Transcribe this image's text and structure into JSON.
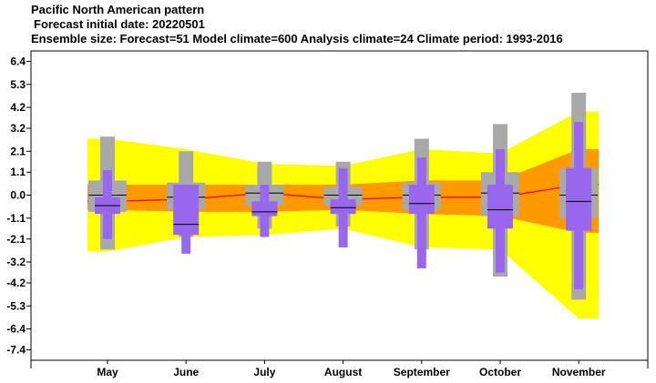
{
  "title": {
    "line1": "Pacific North American pattern",
    "line2": "Forecast initial date: 20220501",
    "line3": "Ensemble size: Forecast=51 Model climate=600 Analysis climate=24   Climate period: 1993-2016"
  },
  "chart_data": {
    "type": "box",
    "categories": [
      "May",
      "June",
      "July",
      "August",
      "September",
      "October",
      "November"
    ],
    "y_ticks": [
      "6.4",
      "5.3",
      "4.2",
      "3.2",
      "2.1",
      "1.1",
      "0.0",
      "-1.1",
      "-2.1",
      "-3.2",
      "-4.2",
      "-5.3",
      "-6.4",
      "-7.4"
    ],
    "ylim": [
      -7.9,
      6.9
    ],
    "grid": false,
    "colors": {
      "climate_envelope_outer": "#ffff00",
      "climate_envelope_inner": "#ff9900",
      "climate_median_line": "#ff0000",
      "model_climate_box": "#a9a9a9",
      "forecast_box": "#9966ee",
      "median_tick": "#000000"
    },
    "climate_envelope": {
      "outer_upper": [
        2.7,
        2.2,
        1.5,
        1.4,
        2.2,
        2.0,
        4.0
      ],
      "outer_lower": [
        -2.7,
        -2.0,
        -1.9,
        -1.6,
        -2.5,
        -2.6,
        -5.9
      ],
      "inner_upper": [
        0.5,
        0.5,
        0.5,
        0.5,
        0.7,
        0.7,
        2.2
      ],
      "inner_lower": [
        -0.7,
        -0.8,
        -0.8,
        -0.7,
        -0.9,
        -1.0,
        -1.8
      ],
      "median": [
        -0.3,
        -0.2,
        0.1,
        -0.2,
        -0.1,
        -0.1,
        0.5
      ]
    },
    "model_climate": [
      {
        "min": -2.6,
        "q1": -0.8,
        "median": 0.0,
        "q3": 0.7,
        "max": 2.8
      },
      {
        "min": -2.0,
        "q1": -0.7,
        "median": -0.1,
        "q3": 0.6,
        "max": 2.1
      },
      {
        "min": -1.6,
        "q1": -0.5,
        "median": 0.1,
        "q3": 0.5,
        "max": 1.6
      },
      {
        "min": -1.5,
        "q1": -0.5,
        "median": 0.0,
        "q3": 0.4,
        "max": 1.6
      },
      {
        "min": -2.6,
        "q1": -0.7,
        "median": 0.0,
        "q3": 0.6,
        "max": 2.7
      },
      {
        "min": -3.9,
        "q1": -1.0,
        "median": 0.1,
        "q3": 1.1,
        "max": 3.4
      },
      {
        "min": -5.0,
        "q1": -1.1,
        "median": 0.0,
        "q3": 1.3,
        "max": 4.9
      }
    ],
    "forecast": [
      {
        "min": -2.1,
        "q1": -0.9,
        "median": -0.5,
        "q3": -0.1,
        "max": 1.2
      },
      {
        "min": -2.8,
        "q1": -1.9,
        "median": -1.4,
        "q3": 0.5,
        "max": 0.5
      },
      {
        "min": -2.0,
        "q1": -1.0,
        "median": -0.8,
        "q3": -0.3,
        "max": 0.5
      },
      {
        "min": -2.5,
        "q1": -0.9,
        "median": -0.6,
        "q3": -0.2,
        "max": 1.3
      },
      {
        "min": -3.5,
        "q1": -0.9,
        "median": -0.4,
        "q3": 0.5,
        "max": 1.8
      },
      {
        "min": -3.7,
        "q1": -1.6,
        "median": -0.7,
        "q3": 0.5,
        "max": 2.2
      },
      {
        "min": -4.5,
        "q1": -1.7,
        "median": -0.3,
        "q3": 1.3,
        "max": 3.5
      }
    ]
  }
}
